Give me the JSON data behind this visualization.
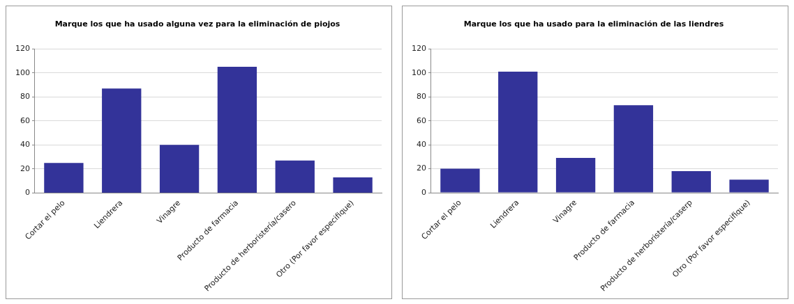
{
  "chart_data": [
    {
      "type": "bar",
      "title": "Marque los que ha usado alguna vez para la eliminación de piojos",
      "categories": [
        "Cortar el pelo",
        "Liendrera",
        "Vinagre",
        "Producto de farmacia",
        "Producto de herboristería/casero",
        "Otro (Por favor especifique)"
      ],
      "values": [
        25,
        87,
        40,
        105,
        27,
        13
      ],
      "color": "#333399",
      "ylim": [
        0,
        120
      ],
      "yticks": [
        0,
        20,
        40,
        60,
        80,
        100,
        120
      ],
      "grid": "y",
      "legend": false
    },
    {
      "type": "bar",
      "title": "Marque los que ha usado para la eliminación de las liendres",
      "categories": [
        "Cortar el pelo",
        "Liendrera",
        "Vinagre",
        "Producto de farmacia",
        "Producto de herboristería/caserp",
        "Otro (Por favor especifique)"
      ],
      "values": [
        20,
        101,
        29,
        73,
        18,
        11
      ],
      "color": "#333399",
      "ylim": [
        0,
        120
      ],
      "yticks": [
        0,
        20,
        40,
        60,
        80,
        100,
        120
      ],
      "grid": "y",
      "legend": false
    }
  ]
}
